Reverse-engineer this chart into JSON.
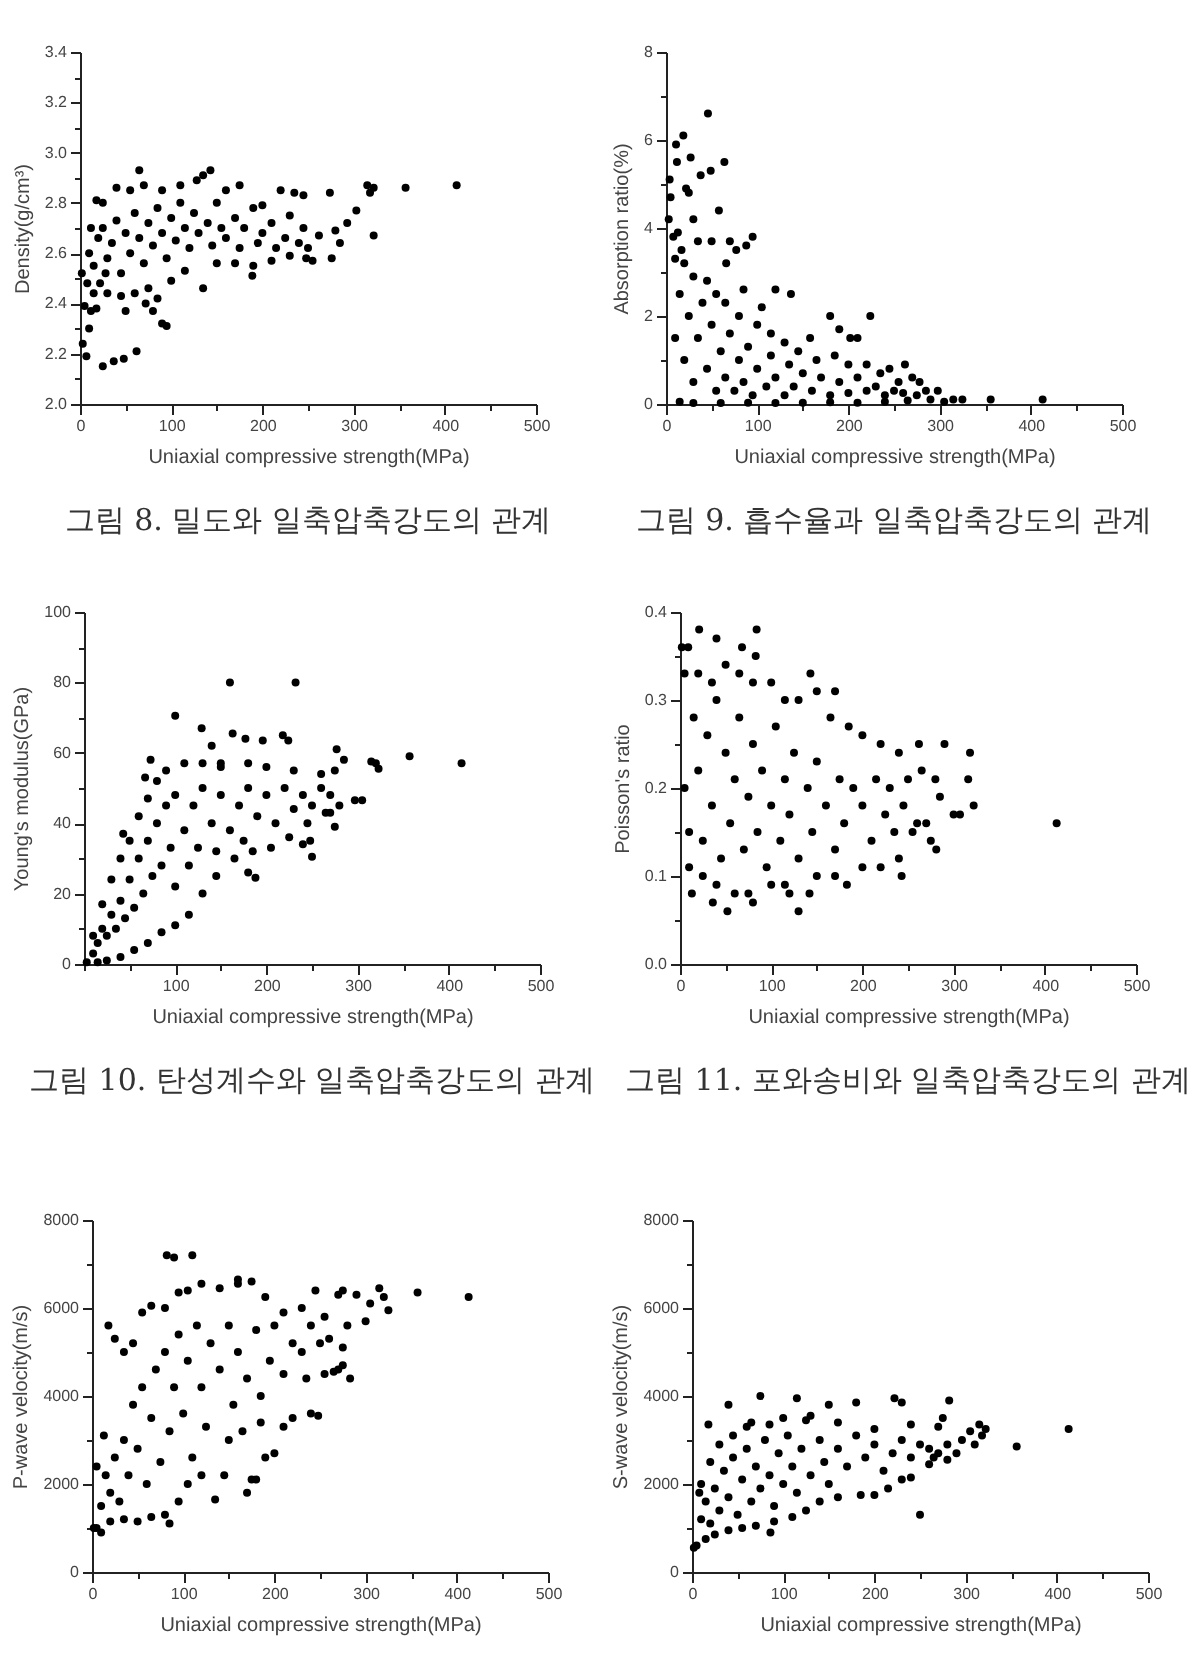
{
  "chart_data": [
    {
      "type": "scatter",
      "xlabel": "Uniaxial compressive strength(MPa)",
      "ylabel": "Density(g/cm³)",
      "annotations": [
        "그림 8. 밀도와 일축압축강도의 관계"
      ],
      "color": "#000000",
      "marker": "circle",
      "grid": false,
      "xlim": [
        0,
        500
      ],
      "xticks": [
        0,
        {
          "value": 50,
          "label": null
        },
        100,
        {
          "value": 150,
          "label": null
        },
        200,
        {
          "value": 250,
          "label": null
        },
        300,
        {
          "value": 350,
          "label": null
        },
        400,
        {
          "value": 450,
          "label": null
        },
        500
      ],
      "ylim": [
        2,
        3.4
      ],
      "yticks": [
        {
          "value": 2,
          "label": "2.0"
        },
        {
          "value": 2.1,
          "label": null
        },
        2.2,
        {
          "value": 2.3,
          "label": null
        },
        2.4,
        {
          "value": 2.5,
          "label": null
        },
        2.6,
        {
          "value": 2.7,
          "label": null
        },
        2.8,
        {
          "value": 2.9,
          "label": null
        },
        {
          "value": 3,
          "label": "3.0"
        },
        {
          "value": 3.1,
          "label": null
        },
        3.2,
        {
          "value": 3.3,
          "label": null
        },
        3.4
      ],
      "x": [
        413,
        357,
        322,
        315,
        318,
        322,
        303,
        293,
        276,
        274,
        280,
        285,
        262,
        255,
        65,
        143,
        25,
        37,
        48,
        62,
        3,
        7,
        10,
        90,
        95,
        80,
        135,
        189,
        2,
        5,
        12,
        18,
        50,
        72,
        85,
        18,
        25,
        40,
        55,
        70,
        90,
        110,
        128,
        135,
        160,
        175,
        200,
        220,
        235,
        245,
        15,
        30,
        45,
        60,
        75,
        100,
        115,
        150,
        170,
        190,
        210,
        230,
        248,
        10,
        15,
        20,
        25,
        30,
        35,
        40,
        45,
        50,
        55,
        60,
        65,
        70,
        75,
        80,
        85,
        90,
        95,
        100,
        105,
        110,
        115,
        120,
        125,
        130,
        140,
        145,
        150,
        155,
        160,
        170,
        175,
        180,
        190,
        195,
        200,
        210,
        215,
        225,
        230,
        240,
        245,
        250,
        8,
        22,
        28,
        12
      ],
      "values": [
        2.87,
        2.86,
        2.86,
        2.87,
        2.84,
        2.67,
        2.77,
        2.72,
        2.58,
        2.84,
        2.69,
        2.64,
        2.67,
        2.57,
        2.93,
        2.93,
        2.15,
        2.17,
        2.18,
        2.21,
        2.24,
        2.19,
        2.3,
        2.32,
        2.31,
        2.37,
        2.46,
        2.51,
        2.52,
        2.39,
        2.37,
        2.38,
        2.37,
        2.4,
        2.42,
        2.81,
        2.8,
        2.86,
        2.85,
        2.87,
        2.85,
        2.87,
        2.89,
        2.91,
        2.85,
        2.87,
        2.79,
        2.85,
        2.84,
        2.83,
        2.44,
        2.44,
        2.43,
        2.44,
        2.46,
        2.49,
        2.53,
        2.56,
        2.56,
        2.55,
        2.57,
        2.59,
        2.58,
        2.6,
        2.55,
        2.66,
        2.7,
        2.58,
        2.64,
        2.73,
        2.52,
        2.68,
        2.6,
        2.76,
        2.66,
        2.56,
        2.72,
        2.63,
        2.78,
        2.68,
        2.58,
        2.74,
        2.65,
        2.8,
        2.7,
        2.62,
        2.76,
        2.68,
        2.72,
        2.63,
        2.8,
        2.7,
        2.66,
        2.74,
        2.62,
        2.7,
        2.78,
        2.64,
        2.68,
        2.72,
        2.62,
        2.66,
        2.75,
        2.64,
        2.7,
        2.62,
        2.48,
        2.48,
        2.52,
        2.7
      ]
    },
    {
      "type": "scatter",
      "xlabel": "Uniaxial compressive strength(MPa)",
      "ylabel": "Absorption ratio(%)",
      "annotations": [
        "그림 9. 흡수율과 일축압축강도의 관계"
      ],
      "color": "#000000",
      "marker": "circle",
      "grid": false,
      "xlim": [
        0,
        500
      ],
      "xticks": [
        0,
        {
          "value": 50,
          "label": null
        },
        100,
        {
          "value": 150,
          "label": null
        },
        200,
        {
          "value": 250,
          "label": null
        },
        300,
        {
          "value": 350,
          "label": null
        },
        400,
        {
          "value": 450,
          "label": null
        },
        500
      ],
      "ylim": [
        0,
        8
      ],
      "yticks": [
        0,
        {
          "value": 1,
          "label": null
        },
        2,
        {
          "value": 3,
          "label": null
        },
        4,
        {
          "value": 5,
          "label": null
        },
        6,
        {
          "value": 7,
          "label": null
        },
        8
      ],
      "x": [
        46,
        19,
        11,
        12,
        27,
        4,
        5,
        49,
        64,
        38,
        22,
        25,
        58,
        3,
        30,
        13,
        95,
        88,
        77,
        70,
        35,
        50,
        120,
        137,
        180,
        224,
        202,
        210,
        158,
        262,
        413,
        356,
        325,
        315,
        298,
        278,
        270,
        8,
        17,
        66,
        85,
        105,
        190,
        245,
        10,
        20,
        30,
        45,
        55,
        65,
        80,
        100,
        115,
        130,
        145,
        165,
        185,
        200,
        220,
        235,
        255,
        285,
        15,
        30,
        60,
        90,
        120,
        150,
        180,
        210,
        240,
        265,
        290,
        305,
        10,
        15,
        20,
        25,
        30,
        35,
        40,
        45,
        50,
        55,
        60,
        65,
        70,
        75,
        80,
        85,
        90,
        95,
        100,
        110,
        115,
        120,
        130,
        135,
        140,
        150,
        160,
        170,
        180,
        190,
        200,
        210,
        220,
        230,
        240,
        250,
        260,
        275
      ],
      "values": [
        6.6,
        6.1,
        5.9,
        5.5,
        5.6,
        5.1,
        4.7,
        5.3,
        5.5,
        5.2,
        4.9,
        4.8,
        4.4,
        4.2,
        4.2,
        3.9,
        3.8,
        3.6,
        3.5,
        3.7,
        3.7,
        3.7,
        2.6,
        2.5,
        2.0,
        2.0,
        1.5,
        1.5,
        1.5,
        0.9,
        0.1,
        0.1,
        0.1,
        0.1,
        0.3,
        0.5,
        0.6,
        3.8,
        3.5,
        3.2,
        2.6,
        2.2,
        1.7,
        0.8,
        3.3,
        3.2,
        2.9,
        2.8,
        2.5,
        2.3,
        2.0,
        1.8,
        1.6,
        1.4,
        1.2,
        1.0,
        1.1,
        0.9,
        0.9,
        0.7,
        0.5,
        0.3,
        0.05,
        0.02,
        0.02,
        0.03,
        0.02,
        0.03,
        0.04,
        0.03,
        0.05,
        0.08,
        0.1,
        0.05,
        1.5,
        2.5,
        1.0,
        2.0,
        0.5,
        1.5,
        2.3,
        0.8,
        1.8,
        0.3,
        1.2,
        0.6,
        1.6,
        0.3,
        1.0,
        0.5,
        1.3,
        0.2,
        0.8,
        0.4,
        1.1,
        0.6,
        0.2,
        0.9,
        0.4,
        0.7,
        0.3,
        0.6,
        0.2,
        0.5,
        0.25,
        0.6,
        0.3,
        0.4,
        0.2,
        0.3,
        0.25,
        0.2
      ]
    },
    {
      "type": "scatter",
      "xlabel": "Uniaxial compressive strength(MPa)",
      "ylabel": "Young's modulus(GPa)",
      "annotations": [
        "그림 10. 탄성계수와 일축압축강도의 관계"
      ],
      "color": "#000000",
      "marker": "circle",
      "grid": false,
      "xlim": [
        0,
        500
      ],
      "xticks": [
        {
          "value": 0,
          "label": null
        },
        {
          "value": 50,
          "label": null
        },
        100,
        {
          "value": 150,
          "label": null
        },
        200,
        {
          "value": 250,
          "label": null
        },
        300,
        {
          "value": 350,
          "label": null
        },
        400,
        {
          "value": 450,
          "label": null
        },
        500
      ],
      "ylim": [
        0,
        100
      ],
      "yticks": [
        0,
        {
          "value": 10,
          "label": null
        },
        20,
        {
          "value": 30,
          "label": null
        },
        40,
        {
          "value": 50,
          "label": null
        },
        60,
        {
          "value": 70,
          "label": null
        },
        80,
        {
          "value": 90,
          "label": null
        },
        100
      ],
      "x": [
        160,
        232,
        100,
        129,
        163,
        177,
        196,
        218,
        224,
        414,
        357,
        320,
        323,
        305,
        297,
        277,
        250,
        188,
        180,
        73,
        67,
        43,
        275,
        285,
        270,
        315,
        140,
        150,
        248,
        240,
        10,
        20,
        30,
        40,
        50,
        60,
        70,
        80,
        90,
        110,
        130,
        150,
        180,
        200,
        230,
        260,
        275,
        3,
        15,
        25,
        40,
        55,
        70,
        85,
        100,
        115,
        130,
        145,
        165,
        185,
        205,
        225,
        245,
        265,
        280,
        10,
        15,
        20,
        25,
        30,
        35,
        40,
        45,
        50,
        55,
        60,
        65,
        70,
        75,
        80,
        85,
        90,
        95,
        100,
        100,
        110,
        115,
        120,
        125,
        130,
        140,
        145,
        150,
        160,
        170,
        175,
        180,
        190,
        200,
        210,
        220,
        230,
        240,
        250,
        260,
        270
      ],
      "values": [
        80,
        80,
        70.5,
        67,
        65.5,
        64,
        63.5,
        65,
        63.5,
        57,
        59,
        57,
        55.5,
        46.5,
        46.5,
        61,
        30.5,
        24.5,
        26,
        58,
        53,
        37,
        39,
        58,
        43,
        57.5,
        62,
        56,
        35,
        34,
        8,
        17,
        24,
        30,
        35,
        42,
        47,
        52,
        55,
        57,
        57,
        57,
        57,
        56,
        55,
        54,
        55,
        0.5,
        0.5,
        1,
        2,
        4,
        6,
        9,
        11,
        14,
        20,
        25,
        30,
        32,
        33,
        36,
        40,
        43,
        45,
        3,
        6,
        10,
        8,
        14,
        10,
        18,
        13,
        24,
        16,
        30,
        20,
        35,
        25,
        40,
        28,
        45,
        33,
        22,
        48,
        38,
        28,
        45,
        33,
        50,
        40,
        32,
        48,
        38,
        45,
        35,
        50,
        42,
        48,
        40,
        50,
        44,
        48,
        45,
        50,
        48
      ]
    },
    {
      "type": "scatter",
      "xlabel": "Uniaxial compressive strength(MPa)",
      "ylabel": "Poisson's ratio",
      "annotations": [
        "그림 11. 포와송비와 일축압축강도의 관계"
      ],
      "color": "#000000",
      "marker": "circle",
      "grid": false,
      "xlim": [
        0,
        500
      ],
      "xticks": [
        0,
        {
          "value": 50,
          "label": null
        },
        100,
        {
          "value": 150,
          "label": null
        },
        200,
        {
          "value": 250,
          "label": null
        },
        300,
        {
          "value": 350,
          "label": null
        },
        400,
        {
          "value": 450,
          "label": null
        },
        500
      ],
      "ylim": [
        0,
        0.4
      ],
      "yticks": [
        {
          "value": 0,
          "label": "0.0"
        },
        {
          "value": 0.05,
          "label": null
        },
        0.1,
        {
          "value": 0.15,
          "label": null
        },
        0.2,
        {
          "value": 0.25,
          "label": null
        },
        0.3,
        {
          "value": 0.35,
          "label": null
        },
        0.4
      ],
      "x": [
        413,
        322,
        316,
        318,
        290,
        300,
        307,
        281,
        275,
        262,
        130,
        183,
        142,
        52,
        21,
        84,
        40,
        9,
        2,
        13,
        243,
        270,
        260,
        68,
        83,
        143,
        170,
        36,
        80,
        120,
        280,
        285,
        265,
        255,
        5,
        20,
        35,
        50,
        65,
        80,
        100,
        115,
        130,
        150,
        165,
        185,
        200,
        220,
        240,
        10,
        25,
        40,
        60,
        75,
        100,
        115,
        150,
        170,
        200,
        220,
        240,
        5,
        10,
        15,
        20,
        25,
        30,
        35,
        40,
        45,
        50,
        55,
        60,
        65,
        70,
        75,
        80,
        85,
        90,
        95,
        100,
        105,
        110,
        115,
        120,
        125,
        130,
        140,
        145,
        150,
        160,
        170,
        175,
        180,
        190,
        200,
        210,
        215,
        225,
        230,
        245,
        250,
        235
      ],
      "values": [
        0.16,
        0.18,
        0.21,
        0.24,
        0.25,
        0.17,
        0.17,
        0.13,
        0.14,
        0.25,
        0.06,
        0.09,
        0.08,
        0.06,
        0.38,
        0.38,
        0.37,
        0.36,
        0.36,
        0.08,
        0.1,
        0.16,
        0.16,
        0.36,
        0.35,
        0.33,
        0.31,
        0.07,
        0.07,
        0.08,
        0.21,
        0.19,
        0.22,
        0.15,
        0.33,
        0.33,
        0.32,
        0.34,
        0.33,
        0.32,
        0.32,
        0.3,
        0.3,
        0.31,
        0.28,
        0.27,
        0.26,
        0.25,
        0.24,
        0.11,
        0.1,
        0.09,
        0.08,
        0.08,
        0.09,
        0.09,
        0.1,
        0.1,
        0.11,
        0.11,
        0.12,
        0.2,
        0.15,
        0.28,
        0.22,
        0.14,
        0.26,
        0.18,
        0.3,
        0.12,
        0.24,
        0.16,
        0.21,
        0.28,
        0.13,
        0.19,
        0.25,
        0.15,
        0.22,
        0.11,
        0.18,
        0.27,
        0.14,
        0.21,
        0.17,
        0.24,
        0.12,
        0.2,
        0.15,
        0.23,
        0.18,
        0.13,
        0.21,
        0.16,
        0.2,
        0.18,
        0.14,
        0.21,
        0.17,
        0.2,
        0.18,
        0.21,
        0.15
      ]
    },
    {
      "type": "scatter",
      "xlabel": "Uniaxial compressive strength(MPa)",
      "ylabel": "P-wave velocity(m/s)",
      "color": "#000000",
      "marker": "circle",
      "grid": false,
      "xlim": [
        0,
        500
      ],
      "xticks": [
        0,
        {
          "value": 50,
          "label": null
        },
        100,
        {
          "value": 150,
          "label": null
        },
        200,
        {
          "value": 250,
          "label": null
        },
        300,
        {
          "value": 350,
          "label": null
        },
        400,
        {
          "value": 450,
          "label": null
        },
        500
      ],
      "ylim": [
        0,
        8000
      ],
      "yticks": [
        0,
        {
          "value": 1000,
          "label": null
        },
        2000,
        {
          "value": 3000,
          "label": null
        },
        4000,
        {
          "value": 5000,
          "label": null
        },
        6000,
        {
          "value": 7000,
          "label": null
        },
        8000
      ],
      "x": [
        82,
        90,
        110,
        413,
        357,
        315,
        320,
        325,
        300,
        290,
        283,
        248,
        240,
        170,
        135,
        180,
        175,
        85,
        10,
        2,
        200,
        160,
        175,
        120,
        275,
        270,
        245,
        305,
        210,
        270,
        265,
        145,
        190,
        5,
        13,
        18,
        25,
        35,
        45,
        55,
        65,
        80,
        95,
        105,
        140,
        160,
        190,
        210,
        230,
        255,
        5,
        20,
        35,
        50,
        65,
        80,
        95,
        105,
        120,
        150,
        165,
        185,
        220,
        235,
        255,
        275,
        10,
        15,
        20,
        25,
        30,
        35,
        40,
        45,
        50,
        55,
        60,
        65,
        70,
        75,
        80,
        85,
        90,
        95,
        100,
        105,
        110,
        115,
        120,
        125,
        130,
        140,
        150,
        155,
        160,
        170,
        180,
        185,
        195,
        200,
        210,
        220,
        230,
        240,
        250,
        260,
        275,
        280
      ],
      "values": [
        7200,
        7150,
        7200,
        6250,
        6350,
        6450,
        6250,
        5950,
        5700,
        6300,
        4400,
        3550,
        3600,
        1800,
        1650,
        2100,
        2100,
        1100,
        900,
        1000,
        2700,
        6650,
        6600,
        6550,
        6400,
        6300,
        6400,
        6100,
        3300,
        4600,
        4550,
        2200,
        2600,
        2400,
        3100,
        5600,
        5300,
        5000,
        5200,
        5900,
        6050,
        6000,
        6350,
        6400,
        6450,
        6550,
        6250,
        5900,
        6000,
        5800,
        1000,
        1150,
        1200,
        1150,
        1250,
        1300,
        1600,
        2000,
        2200,
        3000,
        3200,
        3400,
        3500,
        4400,
        4500,
        4700,
        1500,
        2200,
        1800,
        2600,
        1600,
        3000,
        2200,
        3800,
        2800,
        4200,
        2000,
        3500,
        4600,
        2500,
        5000,
        3200,
        4200,
        5400,
        3600,
        4800,
        2600,
        5600,
        4200,
        3300,
        5200,
        4600,
        5600,
        3800,
        5000,
        4400,
        5500,
        4000,
        4800,
        5600,
        4500,
        5200,
        5000,
        5600,
        5200,
        5300,
        5100,
        5600
      ]
    },
    {
      "type": "scatter",
      "xlabel": "Uniaxial compressive strength(MPa)",
      "ylabel": "S-wave velocity(m/s)",
      "color": "#000000",
      "marker": "circle",
      "grid": false,
      "xlim": [
        0,
        500
      ],
      "xticks": [
        0,
        {
          "value": 50,
          "label": null
        },
        100,
        {
          "value": 150,
          "label": null
        },
        200,
        {
          "value": 250,
          "label": null
        },
        300,
        {
          "value": 350,
          "label": null
        },
        400,
        {
          "value": 450,
          "label": null
        },
        500
      ],
      "ylim": [
        0,
        8000
      ],
      "yticks": [
        0,
        {
          "value": 1000,
          "label": null
        },
        2000,
        {
          "value": 3000,
          "label": null
        },
        4000,
        {
          "value": 5000,
          "label": null
        },
        6000,
        {
          "value": 7000,
          "label": null
        },
        8000
      ],
      "x": [
        413,
        356,
        318,
        322,
        315,
        305,
        250,
        282,
        222,
        115,
        75,
        40,
        86,
        2,
        150,
        180,
        296,
        290,
        275,
        265,
        310,
        18,
        8,
        65,
        230,
        130,
        185,
        200,
        240,
        10,
        20,
        30,
        45,
        60,
        85,
        100,
        125,
        160,
        200,
        240,
        270,
        5,
        15,
        25,
        40,
        55,
        70,
        90,
        110,
        125,
        140,
        160,
        215,
        230,
        260,
        280,
        10,
        15,
        20,
        25,
        30,
        35,
        40,
        45,
        50,
        55,
        60,
        65,
        70,
        75,
        80,
        85,
        90,
        95,
        100,
        105,
        110,
        115,
        120,
        130,
        140,
        145,
        150,
        160,
        170,
        180,
        190,
        200,
        210,
        220,
        230,
        240,
        250,
        260,
        270,
        280
      ],
      "values": [
        3250,
        2850,
        3100,
        3250,
        3350,
        3200,
        1300,
        3900,
        3950,
        3950,
        4000,
        3800,
        900,
        550,
        3800,
        3850,
        3000,
        2700,
        3500,
        2600,
        2900,
        3350,
        1800,
        3400,
        3850,
        3550,
        1750,
        1750,
        2150,
        2000,
        2500,
        2900,
        3100,
        3300,
        3350,
        3500,
        3450,
        3400,
        3250,
        3350,
        3300,
        600,
        750,
        850,
        950,
        1000,
        1050,
        1150,
        1250,
        1400,
        1600,
        1700,
        1900,
        2100,
        2450,
        2550,
        1200,
        1600,
        1100,
        1900,
        1400,
        2300,
        1700,
        2600,
        1300,
        2100,
        2800,
        1600,
        2400,
        1900,
        3000,
        2200,
        1500,
        2700,
        2000,
        3100,
        2400,
        1800,
        2800,
        2200,
        3000,
        2500,
        2000,
        2800,
        2400,
        3100,
        2600,
        2900,
        2300,
        2700,
        3000,
        2600,
        2900,
        2800,
        2700,
        2900
      ]
    }
  ]
}
